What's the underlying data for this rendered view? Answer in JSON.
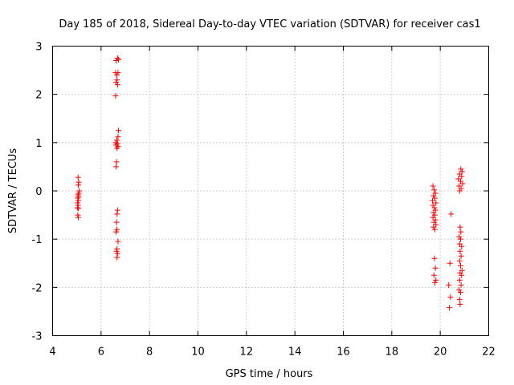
{
  "chart_data": {
    "type": "scatter",
    "title": "Day 185 of 2018, Sidereal Day-to-day VTEC variation (SDTVAR) for receiver cas1",
    "xlabel": "GPS time / hours",
    "ylabel": "SDTVAR / TECUs",
    "xlim": [
      4,
      22
    ],
    "ylim": [
      -3,
      3
    ],
    "grid": true,
    "marker": "plus",
    "color": "#ff0000",
    "xticks": [
      4,
      6,
      8,
      10,
      12,
      14,
      16,
      18,
      20,
      22
    ],
    "yticks": [
      -3,
      -2,
      -1,
      0,
      1,
      2,
      3
    ],
    "series": [
      {
        "name": "SDTVAR",
        "points": [
          [
            5.05,
            0.28
          ],
          [
            5.08,
            0.18
          ],
          [
            5.06,
            0.12
          ],
          [
            5.1,
            0.0
          ],
          [
            5.08,
            -0.05
          ],
          [
            5.05,
            -0.08
          ],
          [
            5.07,
            -0.12
          ],
          [
            5.04,
            -0.15
          ],
          [
            5.06,
            -0.2
          ],
          [
            5.03,
            -0.25
          ],
          [
            5.05,
            -0.3
          ],
          [
            5.03,
            -0.35
          ],
          [
            5.06,
            -0.36
          ],
          [
            5.04,
            -0.5
          ],
          [
            5.06,
            -0.55
          ],
          [
            6.62,
            2.7
          ],
          [
            6.68,
            2.75
          ],
          [
            6.72,
            2.72
          ],
          [
            6.6,
            2.45
          ],
          [
            6.65,
            2.4
          ],
          [
            6.7,
            2.45
          ],
          [
            6.66,
            2.3
          ],
          [
            6.62,
            2.25
          ],
          [
            6.68,
            2.2
          ],
          [
            6.6,
            1.97
          ],
          [
            6.72,
            1.25
          ],
          [
            6.7,
            1.12
          ],
          [
            6.65,
            1.05
          ],
          [
            6.6,
            1.0
          ],
          [
            6.68,
            0.98
          ],
          [
            6.62,
            0.95
          ],
          [
            6.7,
            0.92
          ],
          [
            6.66,
            0.88
          ],
          [
            6.64,
            0.6
          ],
          [
            6.62,
            0.5
          ],
          [
            6.68,
            -0.4
          ],
          [
            6.66,
            -0.48
          ],
          [
            6.64,
            -0.65
          ],
          [
            6.66,
            -0.8
          ],
          [
            6.62,
            -0.85
          ],
          [
            6.7,
            -1.05
          ],
          [
            6.66,
            -1.2
          ],
          [
            6.64,
            -1.25
          ],
          [
            6.68,
            -1.3
          ],
          [
            6.66,
            -1.38
          ],
          [
            19.7,
            0.1
          ],
          [
            19.75,
            0.02
          ],
          [
            19.8,
            -0.05
          ],
          [
            19.72,
            -0.1
          ],
          [
            19.78,
            -0.15
          ],
          [
            19.68,
            -0.2
          ],
          [
            19.82,
            -0.25
          ],
          [
            19.7,
            -0.3
          ],
          [
            19.76,
            -0.35
          ],
          [
            19.8,
            -0.4
          ],
          [
            19.72,
            -0.45
          ],
          [
            19.78,
            -0.5
          ],
          [
            19.7,
            -0.55
          ],
          [
            19.8,
            -0.6
          ],
          [
            19.74,
            -0.65
          ],
          [
            19.82,
            -0.7
          ],
          [
            19.72,
            -0.75
          ],
          [
            19.78,
            -0.8
          ],
          [
            19.76,
            -1.4
          ],
          [
            19.8,
            -1.6
          ],
          [
            19.74,
            -1.75
          ],
          [
            19.82,
            -1.85
          ],
          [
            19.78,
            -1.9
          ],
          [
            20.45,
            -0.48
          ],
          [
            20.4,
            -1.5
          ],
          [
            20.35,
            -1.95
          ],
          [
            20.42,
            -2.2
          ],
          [
            20.38,
            -2.42
          ],
          [
            20.85,
            0.45
          ],
          [
            20.9,
            0.4
          ],
          [
            20.8,
            0.35
          ],
          [
            20.88,
            0.3
          ],
          [
            20.75,
            0.25
          ],
          [
            20.84,
            0.2
          ],
          [
            20.92,
            0.15
          ],
          [
            20.78,
            0.1
          ],
          [
            20.86,
            0.05
          ],
          [
            20.8,
            0.0
          ],
          [
            20.82,
            -0.75
          ],
          [
            20.85,
            -0.85
          ],
          [
            20.78,
            -0.95
          ],
          [
            20.84,
            -1.0
          ],
          [
            20.8,
            -1.1
          ],
          [
            20.88,
            -1.15
          ],
          [
            20.82,
            -1.25
          ],
          [
            20.86,
            -1.35
          ],
          [
            20.8,
            -1.45
          ],
          [
            20.84,
            -1.55
          ],
          [
            20.9,
            -1.65
          ],
          [
            20.82,
            -1.7
          ],
          [
            20.88,
            -1.75
          ],
          [
            20.8,
            -1.85
          ],
          [
            20.86,
            -1.95
          ],
          [
            20.78,
            -2.05
          ],
          [
            20.84,
            -2.1
          ],
          [
            20.8,
            -2.25
          ],
          [
            20.82,
            -2.35
          ]
        ]
      }
    ]
  }
}
